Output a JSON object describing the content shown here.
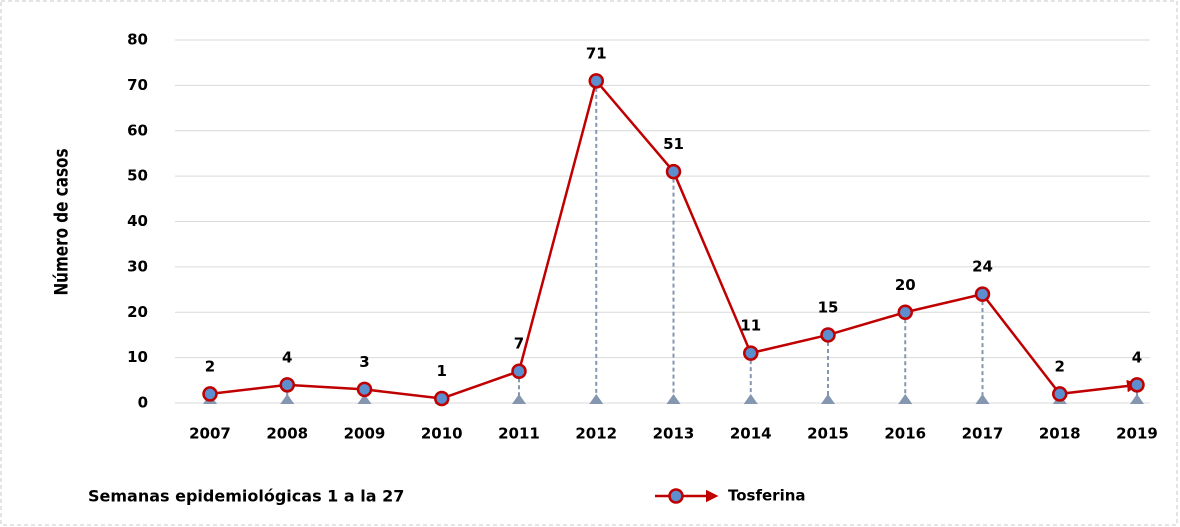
{
  "chart_data": {
    "type": "line",
    "y_label": "Número de casos",
    "annotation": "Semanas epidemiológicas 1 a la 27",
    "categories": [
      "2007",
      "2008",
      "2009",
      "2010",
      "2011",
      "2012",
      "2013",
      "2014",
      "2015",
      "2016",
      "2017",
      "2018",
      "2019"
    ],
    "series": [
      {
        "name": "Tosferina",
        "color": "#c00000",
        "marker_color": "#5b8fd0",
        "values": [
          2,
          4,
          3,
          1,
          7,
          71,
          51,
          11,
          15,
          20,
          24,
          2,
          4
        ]
      }
    ],
    "ylim": [
      0,
      80
    ],
    "yticks": [
      0,
      10,
      20,
      30,
      40,
      50,
      60,
      70,
      80
    ],
    "grid": true,
    "drop_lines": true
  }
}
